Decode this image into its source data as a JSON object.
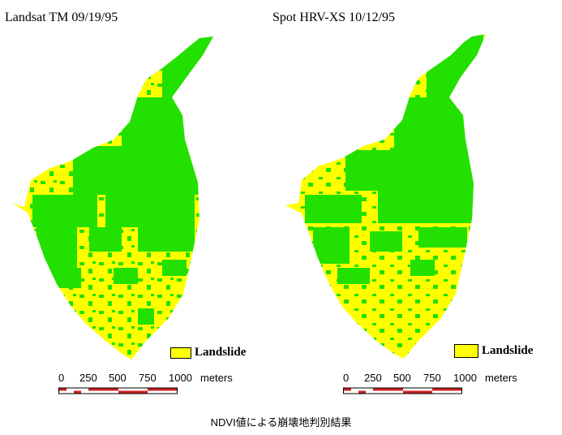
{
  "colors": {
    "vegetation": "#22e000",
    "landslide": "#ffff00",
    "scale_red": "#cc2020"
  },
  "maps": [
    {
      "title": "Landsat TM 09/19/95",
      "legend_label": "Landslide",
      "scale": {
        "ticks": [
          "0",
          "250",
          "500",
          "750",
          "1000"
        ],
        "unit": "meters"
      }
    },
    {
      "title": "Spot HRV-XS 10/12/95",
      "legend_label": "Landslide",
      "scale": {
        "ticks": [
          "0",
          "250",
          "500",
          "750",
          "1000"
        ],
        "unit": "meters"
      }
    }
  ],
  "caption": "NDVI値による崩壊地判別結果"
}
